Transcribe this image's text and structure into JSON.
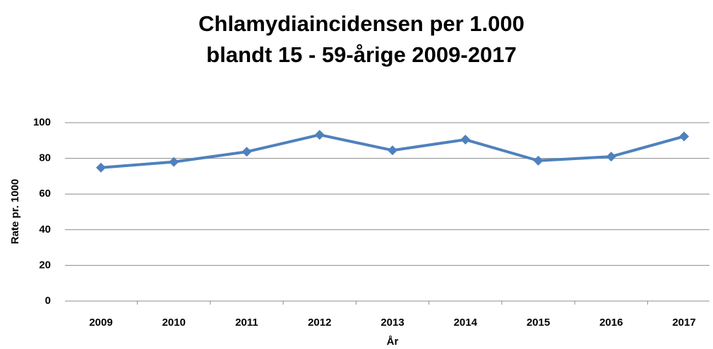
{
  "chart_data": {
    "type": "line",
    "title": [
      "Chlamydiaincidensen per 1.000",
      "blandt 15 - 59-årige 2009-2017"
    ],
    "x_label": "År",
    "y_label": "Rate pr. 1000",
    "categories": [
      "2009",
      "2010",
      "2011",
      "2012",
      "2013",
      "2014",
      "2015",
      "2016",
      "2017"
    ],
    "series": [
      {
        "name": "Rate",
        "color": "#4f81bd",
        "values": [
          74.8,
          78,
          83.7,
          93.2,
          84.5,
          90.5,
          78.7,
          81,
          92.3
        ]
      }
    ],
    "ylim": [
      0,
      100
    ],
    "yticks": [
      0,
      20,
      40,
      60,
      80,
      100
    ],
    "grid": true
  }
}
